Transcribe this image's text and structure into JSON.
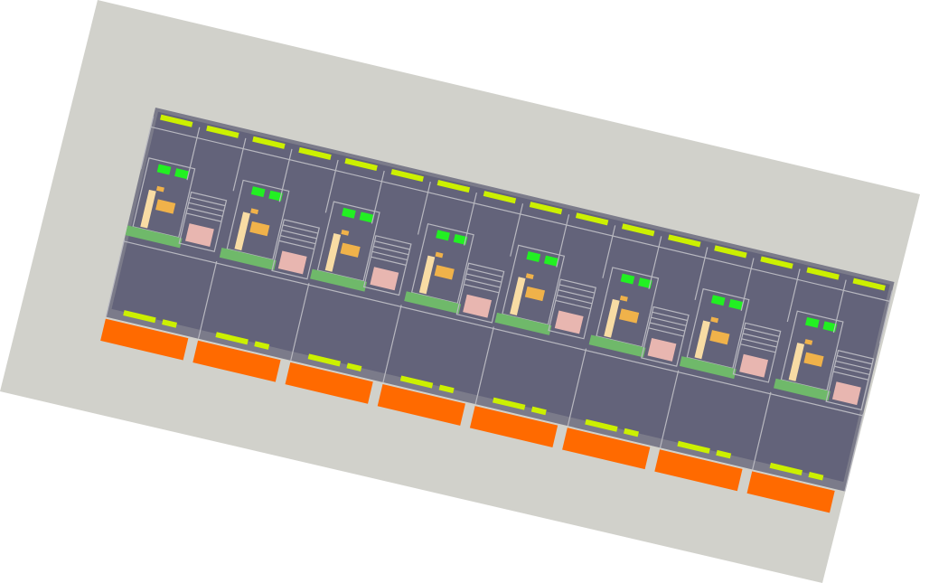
{
  "colors": {
    "site": "#d1d1cb",
    "floor": "#63637a",
    "base": "#7b7b8a",
    "grid": "#b8b8c0",
    "window": "#ccf000",
    "car": "#ff6a00",
    "bed": "#22f022",
    "desk": "#f0b24a",
    "sofa": "#f8dca4",
    "bath": "#e8b6b0",
    "plant": "#6fb96a"
  },
  "layout": {
    "unit_count": 8,
    "units": [
      {
        "unit": 1,
        "variant": "a"
      },
      {
        "unit": 2,
        "variant": "b"
      },
      {
        "unit": 3,
        "variant": "a"
      },
      {
        "unit": 4,
        "variant": "b"
      },
      {
        "unit": 5,
        "variant": "a"
      },
      {
        "unit": 6,
        "variant": "b"
      },
      {
        "unit": 7,
        "variant": "a"
      },
      {
        "unit": 8,
        "variant": "b"
      }
    ]
  }
}
